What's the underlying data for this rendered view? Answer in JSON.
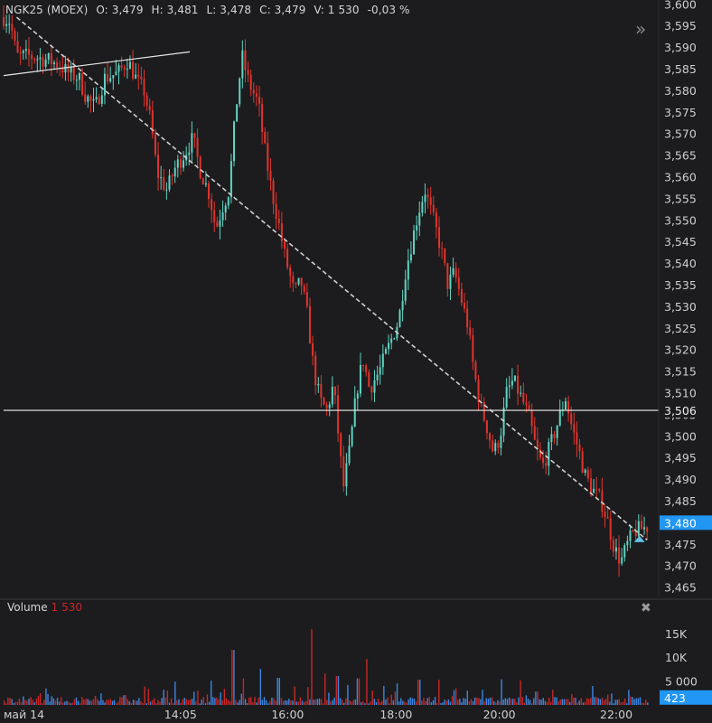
{
  "header": {
    "symbol": "NGK25 (MOEX)",
    "open": "O: 3,479",
    "high": "H: 3,481",
    "low": "L: 3,478",
    "close": "C: 3,479",
    "volume": "V: 1 530",
    "change": "-0,03 %"
  },
  "volume_panel": {
    "title": "Volume",
    "value": "1 530"
  },
  "icons": {
    "expand": "double-chevron-right-icon",
    "close": "close-icon"
  },
  "colors": {
    "up": "#5fd3c2",
    "down": "#e0342c",
    "vol_up": "#3d86e0",
    "vol_down": "#c62828",
    "price_badge": "#2196f3",
    "background": "#1c1c1e"
  },
  "chart_data": [
    {
      "type": "candlestick",
      "title": "",
      "y_ticks": [
        "3,600",
        "3,595",
        "3,590",
        "3,585",
        "3,580",
        "3,575",
        "3,570",
        "3,565",
        "3,560",
        "3,555",
        "3,550",
        "3,545",
        "3,540",
        "3,535",
        "3,530",
        "3,525",
        "3,520",
        "3,515",
        "3,510",
        "3,505",
        "3,500",
        "3,495",
        "3,490",
        "3,485",
        "3,480",
        "3,475",
        "3,470",
        "3,465"
      ],
      "ylim": [
        3.4625,
        3.601
      ],
      "x_ticks": [
        "май 14",
        "14:05",
        "16:00",
        "18:00",
        "20:00",
        "22:00"
      ],
      "x_tick_fracs": [
        0.02,
        0.268,
        0.432,
        0.598,
        0.756,
        0.935
      ],
      "horizontal_line": {
        "value": 3.506,
        "label": "3,506"
      },
      "last_price": {
        "value": 3.48,
        "label": "3,480"
      },
      "trendlines": [
        {
          "style": "solid",
          "from": [
            0.0,
            3.5835
          ],
          "to": [
            0.285,
            3.589
          ]
        },
        {
          "style": "dashed",
          "from": [
            0.02,
            3.597
          ],
          "to": [
            0.985,
            3.476
          ]
        }
      ],
      "price_path": [
        [
          0.0,
          3.597
        ],
        [
          0.01,
          3.596
        ],
        [
          0.02,
          3.588
        ],
        [
          0.04,
          3.588
        ],
        [
          0.07,
          3.587
        ],
        [
          0.085,
          3.586
        ],
        [
          0.1,
          3.584
        ],
        [
          0.115,
          3.583
        ],
        [
          0.125,
          3.579
        ],
        [
          0.14,
          3.576
        ],
        [
          0.155,
          3.583
        ],
        [
          0.175,
          3.584
        ],
        [
          0.19,
          3.587
        ],
        [
          0.205,
          3.582
        ],
        [
          0.215,
          3.58
        ],
        [
          0.225,
          3.573
        ],
        [
          0.235,
          3.561
        ],
        [
          0.25,
          3.557
        ],
        [
          0.262,
          3.562
        ],
        [
          0.275,
          3.565
        ],
        [
          0.29,
          3.569
        ],
        [
          0.3,
          3.562
        ],
        [
          0.315,
          3.556
        ],
        [
          0.325,
          3.548
        ],
        [
          0.335,
          3.553
        ],
        [
          0.345,
          3.557
        ],
        [
          0.355,
          3.575
        ],
        [
          0.365,
          3.588
        ],
        [
          0.375,
          3.582
        ],
        [
          0.39,
          3.577
        ],
        [
          0.4,
          3.566
        ],
        [
          0.41,
          3.557
        ],
        [
          0.42,
          3.55
        ],
        [
          0.43,
          3.542
        ],
        [
          0.445,
          3.533
        ],
        [
          0.455,
          3.536
        ],
        [
          0.465,
          3.528
        ],
        [
          0.475,
          3.515
        ],
        [
          0.485,
          3.508
        ],
        [
          0.495,
          3.506
        ],
        [
          0.505,
          3.512
        ],
        [
          0.515,
          3.496
        ],
        [
          0.52,
          3.488
        ],
        [
          0.53,
          3.497
        ],
        [
          0.54,
          3.51
        ],
        [
          0.55,
          3.518
        ],
        [
          0.56,
          3.511
        ],
        [
          0.575,
          3.515
        ],
        [
          0.59,
          3.521
        ],
        [
          0.605,
          3.527
        ],
        [
          0.615,
          3.538
        ],
        [
          0.625,
          3.545
        ],
        [
          0.635,
          3.552
        ],
        [
          0.645,
          3.557
        ],
        [
          0.66,
          3.549
        ],
        [
          0.67,
          3.543
        ],
        [
          0.68,
          3.535
        ],
        [
          0.69,
          3.538
        ],
        [
          0.7,
          3.532
        ],
        [
          0.71,
          3.526
        ],
        [
          0.72,
          3.515
        ],
        [
          0.73,
          3.507
        ],
        [
          0.74,
          3.502
        ],
        [
          0.75,
          3.496
        ],
        [
          0.76,
          3.5
        ],
        [
          0.77,
          3.51
        ],
        [
          0.78,
          3.513
        ],
        [
          0.795,
          3.508
        ],
        [
          0.805,
          3.504
        ],
        [
          0.815,
          3.497
        ],
        [
          0.825,
          3.493
        ],
        [
          0.835,
          3.497
        ],
        [
          0.85,
          3.504
        ],
        [
          0.86,
          3.509
        ],
        [
          0.87,
          3.502
        ],
        [
          0.88,
          3.497
        ],
        [
          0.89,
          3.491
        ],
        [
          0.9,
          3.488
        ],
        [
          0.915,
          3.485
        ],
        [
          0.925,
          3.48
        ],
        [
          0.935,
          3.474
        ],
        [
          0.945,
          3.471
        ],
        [
          0.955,
          3.475
        ],
        [
          0.965,
          3.478
        ],
        [
          0.985,
          3.479
        ]
      ]
    },
    {
      "type": "bar",
      "title": "Volume",
      "y_ticks": [
        "15K",
        "10K",
        "5 000"
      ],
      "y_tick_values": [
        15000,
        10000,
        5000
      ],
      "ylim": [
        0,
        18500
      ],
      "last_volume": {
        "value": 423,
        "label": "423"
      },
      "spikes": [
        [
          0.03,
          1800
        ],
        [
          0.11,
          1600
        ],
        [
          0.185,
          2100
        ],
        [
          0.215,
          3900
        ],
        [
          0.245,
          3200
        ],
        [
          0.262,
          4900
        ],
        [
          0.29,
          2800
        ],
        [
          0.318,
          5100
        ],
        [
          0.35,
          11600
        ],
        [
          0.365,
          5600
        ],
        [
          0.392,
          7600
        ],
        [
          0.42,
          5700
        ],
        [
          0.445,
          3900
        ],
        [
          0.47,
          16000
        ],
        [
          0.49,
          6300
        ],
        [
          0.51,
          6100
        ],
        [
          0.525,
          4200
        ],
        [
          0.542,
          5600
        ],
        [
          0.556,
          8600
        ],
        [
          0.58,
          4000
        ],
        [
          0.6,
          2300
        ],
        [
          0.635,
          5300
        ],
        [
          0.665,
          5300
        ],
        [
          0.69,
          3100
        ],
        [
          0.71,
          3000
        ],
        [
          0.733,
          3200
        ],
        [
          0.76,
          3500
        ],
        [
          0.79,
          5200
        ],
        [
          0.815,
          2800
        ],
        [
          0.84,
          3200
        ],
        [
          0.87,
          2300
        ],
        [
          0.9,
          4000
        ],
        [
          0.93,
          2400
        ],
        [
          0.96,
          1800
        ]
      ]
    }
  ]
}
